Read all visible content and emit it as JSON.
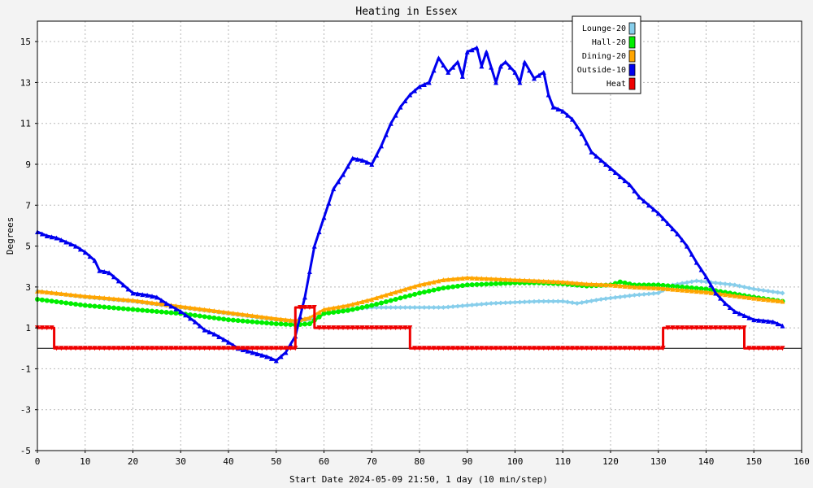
{
  "chart_data": {
    "type": "line",
    "title": "Heating in Essex",
    "xlabel": "Start Date 2024-05-09 21:50, 1 day (10 min/step)",
    "ylabel": "Degrees",
    "xlim": [
      0,
      160
    ],
    "ylim": [
      -5,
      16
    ],
    "xticks": [
      0,
      10,
      20,
      30,
      40,
      50,
      60,
      70,
      80,
      90,
      100,
      110,
      120,
      130,
      140,
      150,
      160
    ],
    "yticks": [
      -5,
      -3,
      -1,
      1,
      3,
      5,
      7,
      9,
      11,
      13,
      15
    ],
    "grid": true,
    "legend_position": "top-right",
    "series": [
      {
        "name": "Lounge-20",
        "color": "#87ceeb",
        "marker": "diamond",
        "points": [
          [
            0,
            2.8
          ],
          [
            10,
            2.5
          ],
          [
            20,
            2.3
          ],
          [
            30,
            2.0
          ],
          [
            40,
            1.7
          ],
          [
            50,
            1.4
          ],
          [
            54,
            1.3
          ],
          [
            57,
            1.4
          ],
          [
            60,
            1.7
          ],
          [
            65,
            1.9
          ],
          [
            70,
            2.0
          ],
          [
            80,
            2.0
          ],
          [
            85,
            2.0
          ],
          [
            90,
            2.1
          ],
          [
            95,
            2.2
          ],
          [
            100,
            2.25
          ],
          [
            105,
            2.3
          ],
          [
            110,
            2.3
          ],
          [
            113,
            2.2
          ],
          [
            118,
            2.4
          ],
          [
            125,
            2.6
          ],
          [
            130,
            2.7
          ],
          [
            133,
            3.1
          ],
          [
            138,
            3.3
          ],
          [
            142,
            3.2
          ],
          [
            146,
            3.1
          ],
          [
            150,
            2.9
          ],
          [
            156,
            2.7
          ]
        ]
      },
      {
        "name": "Hall-20",
        "color": "#00ee00",
        "marker": "circle",
        "points": [
          [
            0,
            2.4
          ],
          [
            10,
            2.1
          ],
          [
            20,
            1.9
          ],
          [
            30,
            1.7
          ],
          [
            40,
            1.4
          ],
          [
            45,
            1.3
          ],
          [
            50,
            1.2
          ],
          [
            54,
            1.15
          ],
          [
            57,
            1.2
          ],
          [
            60,
            1.7
          ],
          [
            65,
            1.85
          ],
          [
            70,
            2.1
          ],
          [
            75,
            2.4
          ],
          [
            80,
            2.7
          ],
          [
            85,
            2.95
          ],
          [
            90,
            3.1
          ],
          [
            95,
            3.15
          ],
          [
            100,
            3.2
          ],
          [
            105,
            3.2
          ],
          [
            110,
            3.15
          ],
          [
            115,
            3.05
          ],
          [
            120,
            3.1
          ],
          [
            122,
            3.25
          ],
          [
            125,
            3.1
          ],
          [
            130,
            3.1
          ],
          [
            135,
            3.0
          ],
          [
            140,
            2.9
          ],
          [
            145,
            2.7
          ],
          [
            150,
            2.5
          ],
          [
            156,
            2.3
          ]
        ]
      },
      {
        "name": "Dining-20",
        "color": "#ffa500",
        "marker": "triangle",
        "points": [
          [
            0,
            2.8
          ],
          [
            10,
            2.55
          ],
          [
            20,
            2.35
          ],
          [
            30,
            2.05
          ],
          [
            40,
            1.75
          ],
          [
            50,
            1.45
          ],
          [
            54,
            1.35
          ],
          [
            57,
            1.5
          ],
          [
            60,
            1.9
          ],
          [
            65,
            2.1
          ],
          [
            70,
            2.4
          ],
          [
            75,
            2.75
          ],
          [
            80,
            3.1
          ],
          [
            85,
            3.35
          ],
          [
            90,
            3.45
          ],
          [
            95,
            3.4
          ],
          [
            100,
            3.35
          ],
          [
            105,
            3.3
          ],
          [
            110,
            3.25
          ],
          [
            115,
            3.15
          ],
          [
            120,
            3.1
          ],
          [
            125,
            3.0
          ],
          [
            130,
            2.95
          ],
          [
            135,
            2.85
          ],
          [
            140,
            2.75
          ],
          [
            145,
            2.6
          ],
          [
            150,
            2.45
          ],
          [
            156,
            2.3
          ]
        ]
      },
      {
        "name": "Outside-10",
        "color": "#0000ee",
        "marker": "triangle",
        "points": [
          [
            0,
            5.7
          ],
          [
            2,
            5.5
          ],
          [
            4,
            5.4
          ],
          [
            8,
            5.0
          ],
          [
            10,
            4.7
          ],
          [
            12,
            4.3
          ],
          [
            13,
            3.8
          ],
          [
            15,
            3.7
          ],
          [
            17,
            3.3
          ],
          [
            20,
            2.7
          ],
          [
            23,
            2.6
          ],
          [
            25,
            2.5
          ],
          [
            27,
            2.2
          ],
          [
            30,
            1.8
          ],
          [
            33,
            1.3
          ],
          [
            35,
            0.9
          ],
          [
            37,
            0.7
          ],
          [
            40,
            0.3
          ],
          [
            42,
            0.0
          ],
          [
            45,
            -0.2
          ],
          [
            48,
            -0.4
          ],
          [
            50,
            -0.6
          ],
          [
            52,
            -0.2
          ],
          [
            54,
            0.6
          ],
          [
            56,
            2.5
          ],
          [
            58,
            5.0
          ],
          [
            60,
            6.4
          ],
          [
            62,
            7.8
          ],
          [
            64,
            8.5
          ],
          [
            66,
            9.3
          ],
          [
            68,
            9.2
          ],
          [
            70,
            9.0
          ],
          [
            72,
            9.9
          ],
          [
            74,
            11.0
          ],
          [
            76,
            11.8
          ],
          [
            78,
            12.4
          ],
          [
            80,
            12.8
          ],
          [
            82,
            13.0
          ],
          [
            84,
            14.2
          ],
          [
            86,
            13.5
          ],
          [
            88,
            14.0
          ],
          [
            89,
            13.3
          ],
          [
            90,
            14.5
          ],
          [
            92,
            14.7
          ],
          [
            93,
            13.8
          ],
          [
            94,
            14.5
          ],
          [
            96,
            13.0
          ],
          [
            97,
            13.8
          ],
          [
            98,
            14.0
          ],
          [
            100,
            13.5
          ],
          [
            101,
            13.0
          ],
          [
            102,
            14.0
          ],
          [
            104,
            13.2
          ],
          [
            106,
            13.5
          ],
          [
            107,
            12.4
          ],
          [
            108,
            11.8
          ],
          [
            110,
            11.6
          ],
          [
            112,
            11.2
          ],
          [
            114,
            10.5
          ],
          [
            116,
            9.6
          ],
          [
            118,
            9.2
          ],
          [
            120,
            8.8
          ],
          [
            122,
            8.4
          ],
          [
            124,
            8.0
          ],
          [
            126,
            7.4
          ],
          [
            128,
            7.0
          ],
          [
            130,
            6.6
          ],
          [
            132,
            6.1
          ],
          [
            134,
            5.6
          ],
          [
            136,
            5.0
          ],
          [
            138,
            4.2
          ],
          [
            140,
            3.5
          ],
          [
            142,
            2.7
          ],
          [
            144,
            2.2
          ],
          [
            146,
            1.8
          ],
          [
            148,
            1.6
          ],
          [
            150,
            1.4
          ],
          [
            152,
            1.35
          ],
          [
            154,
            1.3
          ],
          [
            156,
            1.1
          ]
        ]
      },
      {
        "name": "Heat",
        "color": "#ee0000",
        "marker": "triangle-down",
        "points": [
          [
            0,
            1
          ],
          [
            3.5,
            1
          ],
          [
            3.5,
            0
          ],
          [
            54,
            0
          ],
          [
            54,
            2
          ],
          [
            58,
            2
          ],
          [
            58,
            1
          ],
          [
            78,
            1
          ],
          [
            78,
            0
          ],
          [
            131,
            0
          ],
          [
            131,
            1
          ],
          [
            148,
            1
          ],
          [
            148,
            0
          ],
          [
            156,
            0
          ]
        ]
      }
    ]
  }
}
